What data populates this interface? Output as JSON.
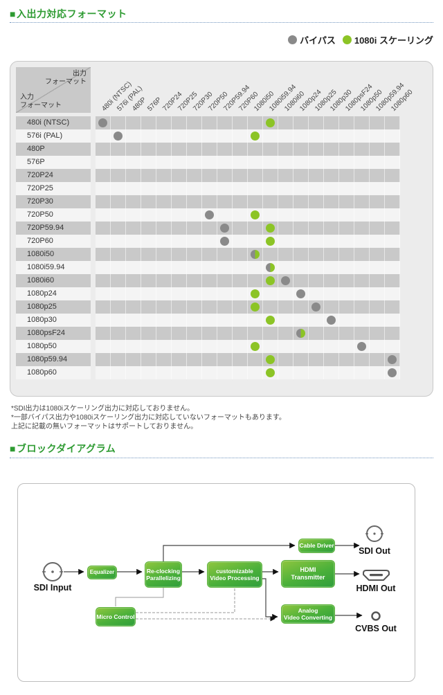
{
  "section1": {
    "bullet": "■",
    "title": "入出力対応フォーマット"
  },
  "legend": {
    "bypass_label": "バイパス",
    "scaling_label": "1080i スケーリング",
    "gray": "#8a8a8a",
    "green": "#8cc426"
  },
  "matrix": {
    "corner": {
      "output": "出力\nフォーマット",
      "input": "入力\nフォーマット"
    },
    "columns": [
      "480i (NTSC)",
      "576i (PAL)",
      "480P",
      "576P",
      "720P24",
      "720P25",
      "720P30",
      "720P50",
      "720P59.94",
      "720P60",
      "1080i50",
      "1080i59.94",
      "1080i60",
      "1080p24",
      "1080p25",
      "1080p30",
      "1080psF24",
      "1080p50",
      "1080p59.94",
      "1080p60"
    ],
    "rows": [
      {
        "label": "480i (NTSC)",
        "dots": [
          {
            "col": 1,
            "type": "gray"
          },
          {
            "col": 12,
            "type": "green"
          }
        ]
      },
      {
        "label": "576i (PAL)",
        "dots": [
          {
            "col": 2,
            "type": "gray"
          },
          {
            "col": 11,
            "type": "green"
          }
        ]
      },
      {
        "label": "480P",
        "dots": []
      },
      {
        "label": "576P",
        "dots": []
      },
      {
        "label": "720P24",
        "dots": []
      },
      {
        "label": "720P25",
        "dots": []
      },
      {
        "label": "720P30",
        "dots": []
      },
      {
        "label": "720P50",
        "dots": [
          {
            "col": 8,
            "type": "gray"
          },
          {
            "col": 11,
            "type": "green"
          }
        ]
      },
      {
        "label": "720P59.94",
        "dots": [
          {
            "col": 9,
            "type": "gray"
          },
          {
            "col": 12,
            "type": "green"
          }
        ]
      },
      {
        "label": "720P60",
        "dots": [
          {
            "col": 9,
            "type": "gray"
          },
          {
            "col": 12,
            "type": "green"
          }
        ]
      },
      {
        "label": "1080i50",
        "dots": [
          {
            "col": 11,
            "type": "half"
          }
        ]
      },
      {
        "label": "1080i59.94",
        "dots": [
          {
            "col": 12,
            "type": "half"
          }
        ]
      },
      {
        "label": "1080i60",
        "dots": [
          {
            "col": 12,
            "type": "green"
          },
          {
            "col": 13,
            "type": "gray"
          }
        ]
      },
      {
        "label": "1080p24",
        "dots": [
          {
            "col": 11,
            "type": "green"
          },
          {
            "col": 14,
            "type": "gray"
          }
        ]
      },
      {
        "label": "1080p25",
        "dots": [
          {
            "col": 11,
            "type": "green"
          },
          {
            "col": 15,
            "type": "gray"
          }
        ]
      },
      {
        "label": "1080p30",
        "dots": [
          {
            "col": 12,
            "type": "green"
          },
          {
            "col": 16,
            "type": "gray"
          }
        ]
      },
      {
        "label": "1080psF24",
        "dots": [
          {
            "col": 14,
            "type": "half"
          }
        ]
      },
      {
        "label": "1080p50",
        "dots": [
          {
            "col": 11,
            "type": "green"
          },
          {
            "col": 18,
            "type": "gray"
          }
        ]
      },
      {
        "label": "1080p59.94",
        "dots": [
          {
            "col": 12,
            "type": "green"
          },
          {
            "col": 20,
            "type": "gray"
          }
        ]
      },
      {
        "label": "1080p60",
        "dots": [
          {
            "col": 12,
            "type": "green"
          },
          {
            "col": 20,
            "type": "gray"
          }
        ]
      }
    ]
  },
  "notes": [
    "*SDI出力は1080iスケーリング出力に対応しておりません。",
    "*一部バイパス出力や1080iスケーリング出力に対応していないフォーマットもあります。",
    "上記に記載の無いフォーマットはサポートしておりません。"
  ],
  "section2": {
    "bullet": "■",
    "title": "ブロックダイアグラム"
  },
  "diagram": {
    "blocks": [
      {
        "id": "equalizer",
        "label": "Equalizer"
      },
      {
        "id": "reclocking",
        "label": "Re-clocking\nParallelizing"
      },
      {
        "id": "video-processing",
        "label": "customizable\nVideo Processing"
      },
      {
        "id": "hdmi-transmitter",
        "label": "HDMI\nTransmitter"
      },
      {
        "id": "cable-driver",
        "label": "Cable Driver"
      },
      {
        "id": "analog-converting",
        "label": "Analog\nVideo Converting"
      },
      {
        "id": "micro-control",
        "label": "Micro Control"
      }
    ],
    "ports": [
      {
        "id": "sdi-input",
        "label": "SDI Input"
      },
      {
        "id": "sdi-out",
        "label": "SDI Out"
      },
      {
        "id": "hdmi-out",
        "label": "HDMI Out"
      },
      {
        "id": "cvbs-out",
        "label": "CVBS Out"
      }
    ]
  }
}
